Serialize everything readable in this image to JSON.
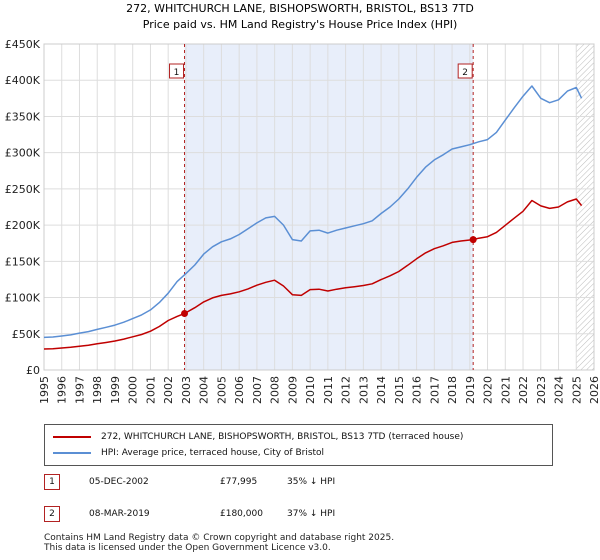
{
  "chart_data": {
    "type": "line",
    "title": "272, WHITCHURCH LANE, BISHOPSWORTH, BRISTOL, BS13 7TD",
    "subtitle": "Price paid vs. HM Land Registry's House Price Index (HPI)",
    "xlabel": "",
    "ylabel": "",
    "xlim": [
      1995,
      2026
    ],
    "ylim": [
      0,
      450000
    ],
    "x_ticks": [
      1995,
      1996,
      1997,
      1998,
      1999,
      2000,
      2001,
      2002,
      2003,
      2004,
      2005,
      2006,
      2007,
      2008,
      2009,
      2010,
      2011,
      2012,
      2013,
      2014,
      2015,
      2016,
      2017,
      2018,
      2019,
      2020,
      2021,
      2022,
      2023,
      2024,
      2025,
      2026
    ],
    "y_ticks": [
      {
        "value": 0,
        "label": "£0"
      },
      {
        "value": 50000,
        "label": "£50K"
      },
      {
        "value": 100000,
        "label": "£100K"
      },
      {
        "value": 150000,
        "label": "£150K"
      },
      {
        "value": 200000,
        "label": "£200K"
      },
      {
        "value": 250000,
        "label": "£250K"
      },
      {
        "value": 300000,
        "label": "£300K"
      },
      {
        "value": 350000,
        "label": "£350K"
      },
      {
        "value": 400000,
        "label": "£400K"
      },
      {
        "value": 450000,
        "label": "£450K"
      }
    ],
    "grid": true,
    "shaded_region": [
      2002.92,
      2019.19
    ],
    "future_hatch_from": 2025.0,
    "series": [
      {
        "name": "HPI: Average price, terraced house, City of Bristol",
        "color": "#5b8fd4",
        "x": [
          1995,
          1995.5,
          1996,
          1996.5,
          1997,
          1997.5,
          1998,
          1998.5,
          1999,
          1999.5,
          2000,
          2000.5,
          2001,
          2001.5,
          2002,
          2002.5,
          2003,
          2003.5,
          2004,
          2004.5,
          2005,
          2005.5,
          2006,
          2006.5,
          2007,
          2007.5,
          2008,
          2008.5,
          2009,
          2009.5,
          2010,
          2010.5,
          2011,
          2011.5,
          2012,
          2012.5,
          2013,
          2013.5,
          2014,
          2014.5,
          2015,
          2015.5,
          2016,
          2016.5,
          2017,
          2017.5,
          2018,
          2018.5,
          2019,
          2019.5,
          2020,
          2020.5,
          2021,
          2021.5,
          2022,
          2022.5,
          2023,
          2023.5,
          2024,
          2024.5,
          2025,
          2025.3
        ],
        "values": [
          45000,
          45500,
          47000,
          48500,
          51000,
          53000,
          56000,
          59000,
          62000,
          66000,
          71000,
          76000,
          83000,
          93000,
          106000,
          122000,
          133000,
          145000,
          160000,
          170000,
          177000,
          181000,
          187000,
          195000,
          203000,
          210000,
          212000,
          200000,
          180000,
          178000,
          192000,
          193000,
          189000,
          193000,
          196000,
          199000,
          202000,
          206000,
          216000,
          225000,
          236000,
          250000,
          266000,
          280000,
          290000,
          297000,
          305000,
          308000,
          311000,
          315000,
          318000,
          328000,
          345000,
          362000,
          378000,
          392000,
          375000,
          369000,
          373000,
          385000,
          390000,
          375000
        ]
      },
      {
        "name": "272, WHITCHURCH LANE, BISHOPSWORTH, BRISTOL, BS13 7TD (terraced house)",
        "color": "#c00000",
        "x": [
          1995,
          1995.5,
          1996,
          1996.5,
          1997,
          1997.5,
          1998,
          1998.5,
          1999,
          1999.5,
          2000,
          2000.5,
          2001,
          2001.5,
          2002,
          2002.5,
          2002.92,
          2003.5,
          2004,
          2004.5,
          2005,
          2005.5,
          2006,
          2006.5,
          2007,
          2007.5,
          2008,
          2008.5,
          2009,
          2009.5,
          2010,
          2010.5,
          2011,
          2011.5,
          2012,
          2012.5,
          2013,
          2013.5,
          2014,
          2014.5,
          2015,
          2015.5,
          2016,
          2016.5,
          2017,
          2017.5,
          2018,
          2018.5,
          2019.19,
          2019.5,
          2020,
          2020.5,
          2021,
          2021.5,
          2022,
          2022.5,
          2023,
          2023.5,
          2024,
          2024.5,
          2025,
          2025.3
        ],
        "values": [
          29000,
          29300,
          30300,
          31300,
          32900,
          34200,
          36100,
          38000,
          40000,
          42600,
          45800,
          49000,
          53500,
          60000,
          68300,
          74000,
          77995,
          86000,
          94000,
          99500,
          103000,
          105000,
          108000,
          112000,
          117000,
          121000,
          124000,
          116000,
          104000,
          103000,
          111000,
          111500,
          109000,
          111500,
          113500,
          115000,
          116700,
          119000,
          124800,
          130000,
          136000,
          144500,
          153500,
          161700,
          167500,
          171500,
          176200,
          178000,
          180000,
          182000,
          184000,
          190000,
          199700,
          209500,
          219000,
          234000,
          226500,
          223000,
          225000,
          232000,
          236000,
          227000
        ]
      }
    ],
    "markers": [
      {
        "label": "1",
        "x": 2002.92,
        "value": 77995
      },
      {
        "label": "2",
        "x": 2019.19,
        "value": 180000
      }
    ]
  },
  "legend": {
    "property_label": "272, WHITCHURCH LANE, BISHOPSWORTH, BRISTOL, BS13 7TD (terraced house)",
    "hpi_label": "HPI: Average price, terraced house, City of Bristol"
  },
  "transactions": [
    {
      "num": "1",
      "date": "05-DEC-2002",
      "price": "£77,995",
      "hpi": "35% ↓ HPI"
    },
    {
      "num": "2",
      "date": "08-MAR-2019",
      "price": "£180,000",
      "hpi": "37% ↓ HPI"
    }
  ],
  "footer": {
    "line1": "Contains HM Land Registry data © Crown copyright and database right 2025.",
    "line2": "This data is licensed under the Open Government Licence v3.0."
  },
  "colors": {
    "property": "#c00000",
    "hpi": "#5b8fd4",
    "shade": "#e8eefa",
    "marker_box": "#b22222"
  }
}
